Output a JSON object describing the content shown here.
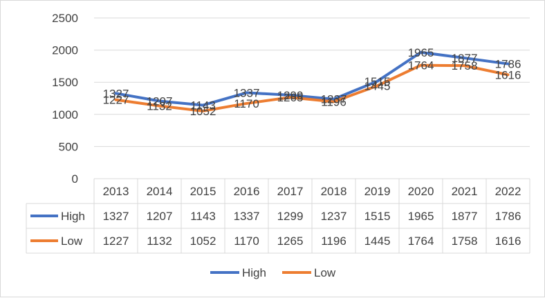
{
  "chart_data": {
    "type": "line",
    "categories": [
      "2013",
      "2014",
      "2015",
      "2016",
      "2017",
      "2018",
      "2019",
      "2020",
      "2021",
      "2022"
    ],
    "series": [
      {
        "name": "High",
        "color": "#4472C4",
        "values": [
          1327,
          1207,
          1143,
          1337,
          1299,
          1237,
          1515,
          1965,
          1877,
          1786
        ]
      },
      {
        "name": "Low",
        "color": "#ED7D31",
        "values": [
          1227,
          1132,
          1052,
          1170,
          1265,
          1196,
          1445,
          1764,
          1758,
          1616
        ]
      }
    ],
    "yticks": [
      "0",
      "500",
      "1000",
      "1500",
      "2000",
      "2500"
    ],
    "ylim": [
      0,
      2500
    ],
    "grid": true,
    "data_table": true,
    "legend_position": "bottom"
  }
}
